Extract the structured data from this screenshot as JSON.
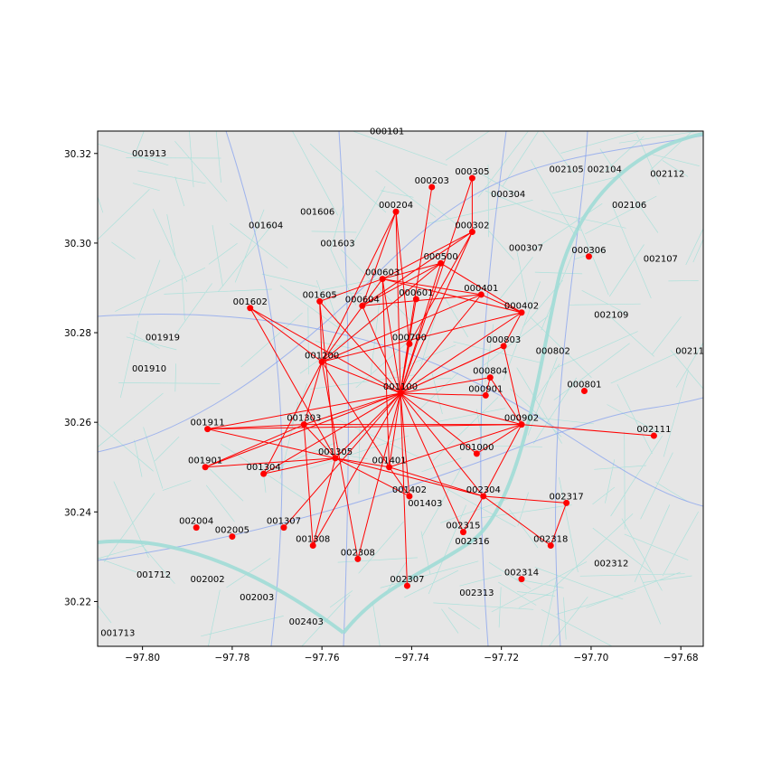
{
  "chart_data": {
    "type": "scatter",
    "subtype": "network-on-street-map",
    "xlim": [
      -97.81,
      -97.675
    ],
    "ylim": [
      30.21,
      30.325
    ],
    "xticks": [
      -97.8,
      -97.78,
      -97.76,
      -97.74,
      -97.72,
      -97.7,
      -97.68
    ],
    "xtick_labels": [
      "−97.80",
      "−97.78",
      "−97.76",
      "−97.74",
      "−97.72",
      "−97.70",
      "−97.68"
    ],
    "yticks": [
      30.22,
      30.24,
      30.26,
      30.28,
      30.3,
      30.32
    ],
    "ytick_labels": [
      "30.22",
      "30.24",
      "30.26",
      "30.28",
      "30.30",
      "30.32"
    ],
    "colors": {
      "edge": "#ff0000",
      "node": "#ff0000",
      "background": "#e6e6e6",
      "streets": "#9fe0d8",
      "roads": "#7f9df0"
    },
    "hub": "001100",
    "nodes": [
      {
        "id": "000101",
        "x": -97.7455,
        "y": 30.3235,
        "dot": false
      },
      {
        "id": "001913",
        "x": -97.7985,
        "y": 30.3185,
        "dot": false
      },
      {
        "id": "000305",
        "x": -97.7265,
        "y": 30.3145,
        "dot": true
      },
      {
        "id": "000203",
        "x": -97.7355,
        "y": 30.3125,
        "dot": true
      },
      {
        "id": "002105",
        "x": -97.7055,
        "y": 30.315,
        "dot": false
      },
      {
        "id": "002104",
        "x": -97.697,
        "y": 30.315,
        "dot": false
      },
      {
        "id": "002112",
        "x": -97.683,
        "y": 30.314,
        "dot": false
      },
      {
        "id": "000304",
        "x": -97.7185,
        "y": 30.3095,
        "dot": false
      },
      {
        "id": "000204",
        "x": -97.7435,
        "y": 30.307,
        "dot": true
      },
      {
        "id": "002106",
        "x": -97.6915,
        "y": 30.307,
        "dot": false
      },
      {
        "id": "001606",
        "x": -97.761,
        "y": 30.3055,
        "dot": false
      },
      {
        "id": "001604",
        "x": -97.7725,
        "y": 30.3025,
        "dot": false
      },
      {
        "id": "000302",
        "x": -97.7265,
        "y": 30.3025,
        "dot": true
      },
      {
        "id": "001603",
        "x": -97.7565,
        "y": 30.2985,
        "dot": false
      },
      {
        "id": "000307",
        "x": -97.7145,
        "y": 30.2975,
        "dot": false
      },
      {
        "id": "000306",
        "x": -97.7005,
        "y": 30.297,
        "dot": true
      },
      {
        "id": "002107",
        "x": -97.6845,
        "y": 30.295,
        "dot": false
      },
      {
        "id": "000500",
        "x": -97.7335,
        "y": 30.2955,
        "dot": true
      },
      {
        "id": "000603",
        "x": -97.7465,
        "y": 30.292,
        "dot": true
      },
      {
        "id": "001602",
        "x": -97.776,
        "y": 30.2855,
        "dot": true
      },
      {
        "id": "000401",
        "x": -97.7245,
        "y": 30.2885,
        "dot": true
      },
      {
        "id": "000601",
        "x": -97.739,
        "y": 30.2875,
        "dot": true
      },
      {
        "id": "001605",
        "x": -97.7605,
        "y": 30.287,
        "dot": true
      },
      {
        "id": "000604",
        "x": -97.751,
        "y": 30.286,
        "dot": true
      },
      {
        "id": "000402",
        "x": -97.7155,
        "y": 30.2845,
        "dot": true
      },
      {
        "id": "002109",
        "x": -97.6955,
        "y": 30.2825,
        "dot": false
      },
      {
        "id": "000700",
        "x": -97.7405,
        "y": 30.2775,
        "dot": true
      },
      {
        "id": "001919",
        "x": -97.7955,
        "y": 30.2775,
        "dot": false
      },
      {
        "id": "000803",
        "x": -97.7195,
        "y": 30.277,
        "dot": true
      },
      {
        "id": "000802",
        "x": -97.7085,
        "y": 30.2745,
        "dot": false
      },
      {
        "id": "00211",
        "x": -97.678,
        "y": 30.2745,
        "dot": false
      },
      {
        "id": "001200",
        "x": -97.76,
        "y": 30.2735,
        "dot": true
      },
      {
        "id": "001910",
        "x": -97.7985,
        "y": 30.2705,
        "dot": false
      },
      {
        "id": "000804",
        "x": -97.7225,
        "y": 30.27,
        "dot": true
      },
      {
        "id": "000801",
        "x": -97.7015,
        "y": 30.267,
        "dot": true
      },
      {
        "id": "001100",
        "x": -97.7425,
        "y": 30.2665,
        "dot": true
      },
      {
        "id": "000901",
        "x": -97.7235,
        "y": 30.266,
        "dot": true
      },
      {
        "id": "001911",
        "x": -97.7855,
        "y": 30.2585,
        "dot": true
      },
      {
        "id": "001303",
        "x": -97.764,
        "y": 30.2595,
        "dot": true
      },
      {
        "id": "000902",
        "x": -97.7155,
        "y": 30.2595,
        "dot": true
      },
      {
        "id": "002111",
        "x": -97.686,
        "y": 30.257,
        "dot": true
      },
      {
        "id": "001000",
        "x": -97.7255,
        "y": 30.253,
        "dot": true
      },
      {
        "id": "001305",
        "x": -97.757,
        "y": 30.252,
        "dot": true
      },
      {
        "id": "001401",
        "x": -97.745,
        "y": 30.25,
        "dot": true
      },
      {
        "id": "001901",
        "x": -97.786,
        "y": 30.25,
        "dot": true
      },
      {
        "id": "001304",
        "x": -97.773,
        "y": 30.2485,
        "dot": true
      },
      {
        "id": "001402",
        "x": -97.7405,
        "y": 30.2435,
        "dot": true
      },
      {
        "id": "002304",
        "x": -97.724,
        "y": 30.2435,
        "dot": true
      },
      {
        "id": "001403",
        "x": -97.737,
        "y": 30.2405,
        "dot": false
      },
      {
        "id": "002317",
        "x": -97.7055,
        "y": 30.242,
        "dot": true
      },
      {
        "id": "002004",
        "x": -97.788,
        "y": 30.2365,
        "dot": true
      },
      {
        "id": "001307",
        "x": -97.7685,
        "y": 30.2365,
        "dot": true
      },
      {
        "id": "002005",
        "x": -97.78,
        "y": 30.2345,
        "dot": true
      },
      {
        "id": "002315",
        "x": -97.7285,
        "y": 30.2355,
        "dot": true
      },
      {
        "id": "001308",
        "x": -97.762,
        "y": 30.2325,
        "dot": true
      },
      {
        "id": "002318",
        "x": -97.709,
        "y": 30.2325,
        "dot": true
      },
      {
        "id": "002316",
        "x": -97.7265,
        "y": 30.232,
        "dot": false
      },
      {
        "id": "002308",
        "x": -97.752,
        "y": 30.2295,
        "dot": true
      },
      {
        "id": "002312",
        "x": -97.6955,
        "y": 30.227,
        "dot": false
      },
      {
        "id": "002314",
        "x": -97.7155,
        "y": 30.225,
        "dot": true
      },
      {
        "id": "001712",
        "x": -97.7975,
        "y": 30.2245,
        "dot": false
      },
      {
        "id": "002307",
        "x": -97.741,
        "y": 30.2235,
        "dot": true
      },
      {
        "id": "002002",
        "x": -97.7855,
        "y": 30.2235,
        "dot": false
      },
      {
        "id": "002313",
        "x": -97.7255,
        "y": 30.2205,
        "dot": false
      },
      {
        "id": "002003",
        "x": -97.7745,
        "y": 30.2195,
        "dot": false
      },
      {
        "id": "002403",
        "x": -97.7635,
        "y": 30.214,
        "dot": false
      },
      {
        "id": "001713",
        "x": -97.8055,
        "y": 30.2115,
        "dot": false
      }
    ],
    "edges": [
      [
        "001100",
        "000204"
      ],
      [
        "001100",
        "000203"
      ],
      [
        "001100",
        "000305"
      ],
      [
        "001100",
        "000302"
      ],
      [
        "001100",
        "000500"
      ],
      [
        "001100",
        "000603"
      ],
      [
        "001100",
        "000601"
      ],
      [
        "001100",
        "000604"
      ],
      [
        "001100",
        "000401"
      ],
      [
        "001100",
        "000402"
      ],
      [
        "001100",
        "000700"
      ],
      [
        "001100",
        "000803"
      ],
      [
        "001100",
        "000804"
      ],
      [
        "001100",
        "000901"
      ],
      [
        "001100",
        "000902"
      ],
      [
        "001100",
        "001200"
      ],
      [
        "001100",
        "001605"
      ],
      [
        "001100",
        "001602"
      ],
      [
        "001100",
        "001911"
      ],
      [
        "001100",
        "001303"
      ],
      [
        "001100",
        "001305"
      ],
      [
        "001100",
        "001401"
      ],
      [
        "001100",
        "001901"
      ],
      [
        "001100",
        "001304"
      ],
      [
        "001100",
        "001402"
      ],
      [
        "001100",
        "002304"
      ],
      [
        "001100",
        "001307"
      ],
      [
        "001100",
        "001308"
      ],
      [
        "001100",
        "002308"
      ],
      [
        "001100",
        "002315"
      ],
      [
        "001100",
        "001000"
      ],
      [
        "001100",
        "002307"
      ],
      [
        "000204",
        "001200"
      ],
      [
        "000204",
        "000604"
      ],
      [
        "000204",
        "000700"
      ],
      [
        "000603",
        "000401"
      ],
      [
        "000603",
        "000402"
      ],
      [
        "000603",
        "001200"
      ],
      [
        "000603",
        "000302"
      ],
      [
        "000603",
        "000500"
      ],
      [
        "000603",
        "001401"
      ],
      [
        "000604",
        "000401"
      ],
      [
        "000604",
        "000302"
      ],
      [
        "000500",
        "000402"
      ],
      [
        "000500",
        "000604"
      ],
      [
        "000500",
        "001200"
      ],
      [
        "000302",
        "000700"
      ],
      [
        "000302",
        "000305"
      ],
      [
        "000401",
        "001200"
      ],
      [
        "000401",
        "000402"
      ],
      [
        "001605",
        "001200"
      ],
      [
        "001605",
        "001305"
      ],
      [
        "001605",
        "000603"
      ],
      [
        "001602",
        "001200"
      ],
      [
        "001602",
        "001305"
      ],
      [
        "001200",
        "000402"
      ],
      [
        "001200",
        "001303"
      ],
      [
        "001200",
        "001304"
      ],
      [
        "001200",
        "002308"
      ],
      [
        "001200",
        "001401"
      ],
      [
        "000402",
        "000803"
      ],
      [
        "000803",
        "000902"
      ],
      [
        "000803",
        "001100"
      ],
      [
        "000804",
        "000902"
      ],
      [
        "000804",
        "000901"
      ],
      [
        "000902",
        "002111"
      ],
      [
        "000902",
        "001911"
      ],
      [
        "000902",
        "001000"
      ],
      [
        "000902",
        "001303"
      ],
      [
        "000902",
        "002304"
      ],
      [
        "000902",
        "001401"
      ],
      [
        "001911",
        "001303"
      ],
      [
        "001911",
        "001305"
      ],
      [
        "001303",
        "001901"
      ],
      [
        "001303",
        "001305"
      ],
      [
        "001303",
        "001308"
      ],
      [
        "001305",
        "001401"
      ],
      [
        "001305",
        "001304"
      ],
      [
        "001305",
        "001308"
      ],
      [
        "001305",
        "001402"
      ],
      [
        "001305",
        "002304"
      ],
      [
        "001401",
        "002304"
      ],
      [
        "001401",
        "001402"
      ],
      [
        "002304",
        "002317"
      ],
      [
        "002304",
        "002318"
      ],
      [
        "002304",
        "002315"
      ],
      [
        "002317",
        "002318"
      ],
      [
        "001901",
        "001305"
      ]
    ]
  }
}
